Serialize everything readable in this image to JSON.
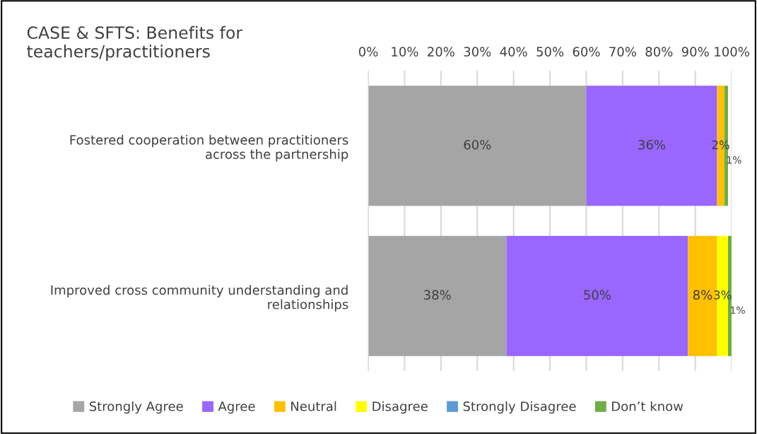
{
  "chart_data": {
    "type": "bar",
    "orientation": "horizontal",
    "stacked": true,
    "title": "CASE & SFTS: Benefits for\nteachers/practitioners",
    "categories": [
      "Fostered cooperation between practitioners\nacross the partnership",
      "Improved cross community understanding and\nrelationships"
    ],
    "series": [
      {
        "name": "Strongly Agree",
        "color": "#a5a5a5",
        "values": [
          60,
          38
        ],
        "value_labels": [
          "60%",
          "38%"
        ]
      },
      {
        "name": "Agree",
        "color": "#9966ff",
        "values": [
          36,
          50
        ],
        "value_labels": [
          "36%",
          "50%"
        ]
      },
      {
        "name": "Neutral",
        "color": "#ffc000",
        "values": [
          2,
          8
        ],
        "value_labels": [
          "2%",
          "8%"
        ]
      },
      {
        "name": "Disagree",
        "color": "#ffff00",
        "values": [
          0,
          3
        ],
        "value_labels": [
          null,
          "3%"
        ]
      },
      {
        "name": "Strongly Disagree",
        "color": "#5b9bd5",
        "values": [
          0,
          0
        ],
        "value_labels": [
          null,
          null
        ]
      },
      {
        "name": "Don’t know",
        "color": "#70ad47",
        "values": [
          1,
          1
        ],
        "value_labels": [
          "1%",
          "1%"
        ]
      }
    ],
    "xlim": [
      0,
      100
    ],
    "xticks": [
      {
        "value": 0,
        "label": "0%"
      },
      {
        "value": 10,
        "label": "10%"
      },
      {
        "value": 20,
        "label": "20%"
      },
      {
        "value": 30,
        "label": "30%"
      },
      {
        "value": 40,
        "label": "40%"
      },
      {
        "value": 50,
        "label": "50%"
      },
      {
        "value": 60,
        "label": "60%"
      },
      {
        "value": 70,
        "label": "70%"
      },
      {
        "value": 80,
        "label": "80%"
      },
      {
        "value": 90,
        "label": "90%"
      },
      {
        "value": 100,
        "label": "100%"
      }
    ],
    "grid": "x",
    "legend": "bottom"
  }
}
